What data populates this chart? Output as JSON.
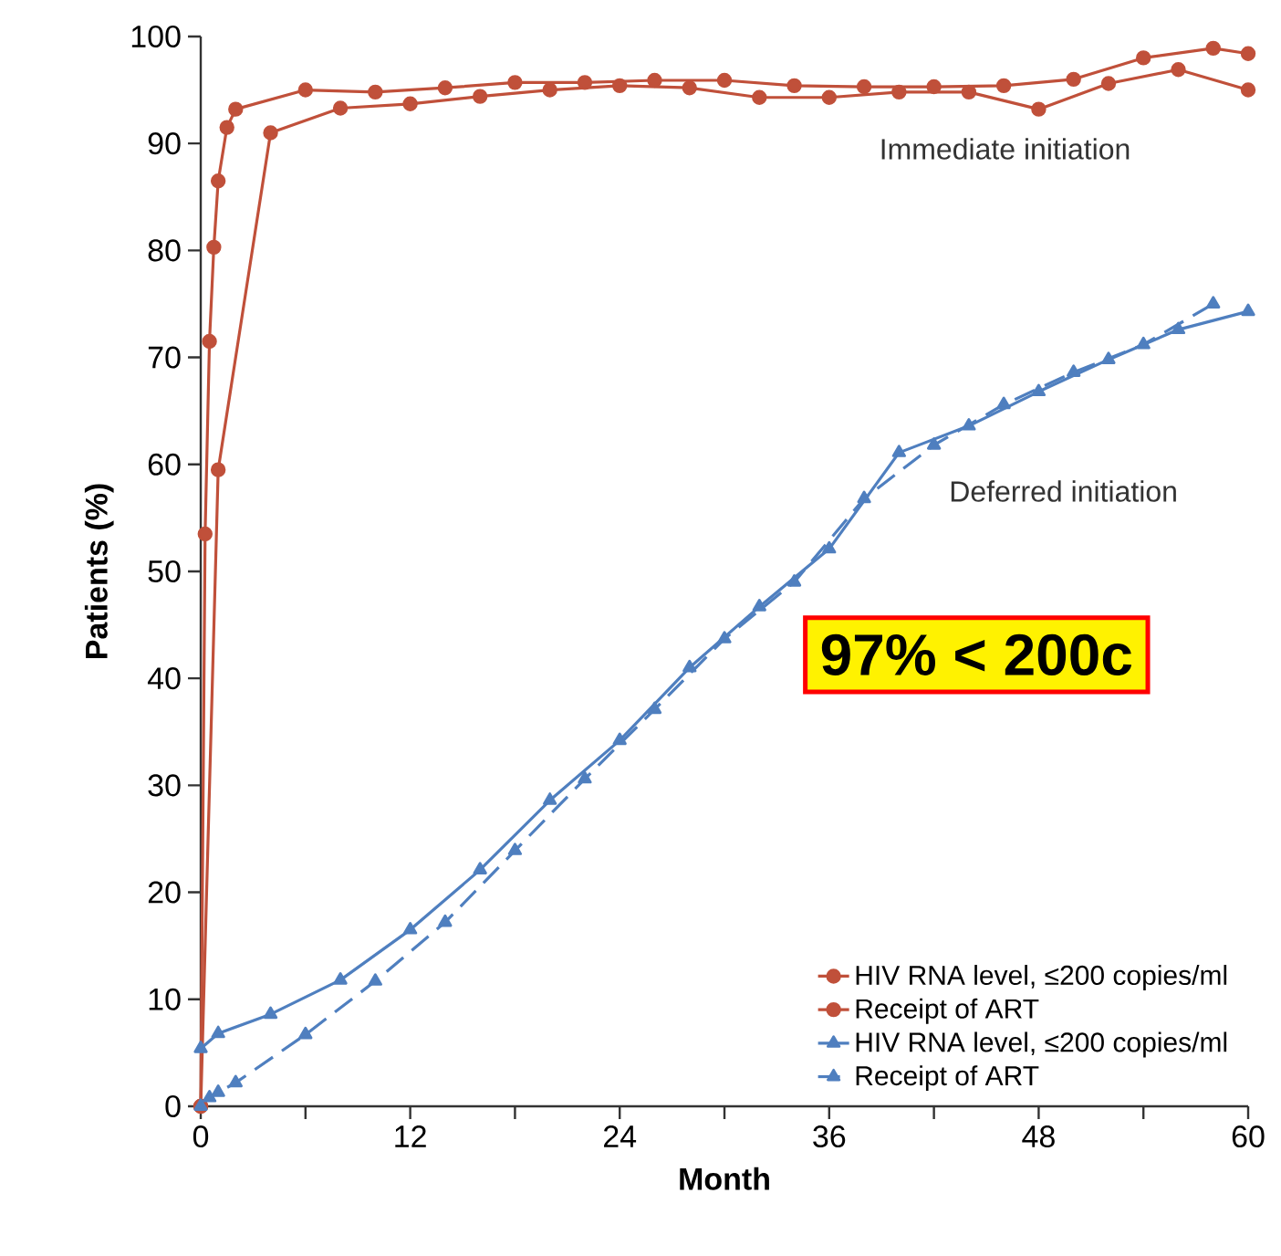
{
  "chart_data": {
    "type": "line",
    "xlabel": "Month",
    "ylabel": "Patients (%)",
    "xlim": [
      0,
      60
    ],
    "xticks": [
      0,
      {
        "value": 6,
        "label": null
      },
      12,
      {
        "value": 18,
        "label": null
      },
      24,
      {
        "value": 30,
        "label": null
      },
      36,
      {
        "value": 42,
        "label": null
      },
      48,
      {
        "value": 54,
        "label": null
      },
      60
    ],
    "ylim": [
      0,
      100
    ],
    "yticks": [
      0,
      10,
      20,
      30,
      40,
      50,
      60,
      70,
      80,
      90,
      100
    ],
    "grid": false,
    "legend": "bottom right",
    "series": [
      {
        "name": "HIV RNA level, ≤200 copies/ml",
        "color": "#c0503a",
        "marker": "circle",
        "line_style": "solid",
        "x": [
          0,
          1,
          4,
          8,
          12,
          16,
          20,
          24,
          28,
          32,
          36,
          40,
          44,
          48,
          52,
          56,
          60
        ],
        "values": [
          0,
          59.5,
          91.0,
          93.3,
          93.7,
          94.4,
          95.0,
          95.4,
          95.2,
          94.3,
          94.3,
          94.8,
          94.8,
          93.2,
          95.6,
          96.9,
          95.0
        ]
      },
      {
        "name": "Receipt of ART",
        "color": "#c0503a",
        "marker": "circle",
        "line_style": "solid",
        "x": [
          0,
          0.25,
          0.5,
          0.75,
          1,
          1.5,
          2,
          6,
          10,
          14,
          18,
          22,
          26,
          30,
          34,
          38,
          42,
          46,
          50,
          54,
          58,
          60
        ],
        "values": [
          0,
          53.5,
          71.5,
          80.3,
          86.5,
          91.5,
          93.2,
          95.0,
          94.8,
          95.2,
          95.7,
          95.7,
          95.9,
          95.9,
          95.4,
          95.3,
          95.3,
          95.4,
          96.0,
          98.0,
          98.9,
          98.4
        ]
      },
      {
        "name": "HIV RNA level, ≤200 copies/ml",
        "color": "#4f7fbf",
        "marker": "triangle",
        "line_style": "solid",
        "x": [
          0,
          1,
          4,
          8,
          12,
          16,
          20,
          24,
          28,
          32,
          36,
          40,
          44,
          48,
          52,
          56,
          60
        ],
        "values": [
          5.4,
          6.8,
          8.6,
          11.8,
          16.5,
          22.1,
          28.6,
          34.2,
          41.0,
          46.7,
          52.1,
          61.1,
          63.6,
          66.8,
          69.8,
          72.6,
          74.3
        ]
      },
      {
        "name": "Receipt of ART",
        "color": "#4f7fbf",
        "marker": "triangle",
        "line_style": "dashed",
        "x": [
          0,
          0.5,
          1,
          2,
          6,
          10,
          14,
          18,
          22,
          26,
          30,
          34,
          38,
          42,
          46,
          50,
          54,
          58
        ],
        "values": [
          0,
          0.8,
          1.3,
          2.2,
          6.7,
          11.7,
          17.2,
          23.9,
          30.6,
          37.1,
          43.7,
          49.0,
          56.8,
          61.8,
          65.6,
          68.6,
          71.2,
          75.0
        ]
      }
    ],
    "annotations": [
      "Immediate initiation",
      "Deferred initiation",
      "97% < 200c"
    ]
  }
}
